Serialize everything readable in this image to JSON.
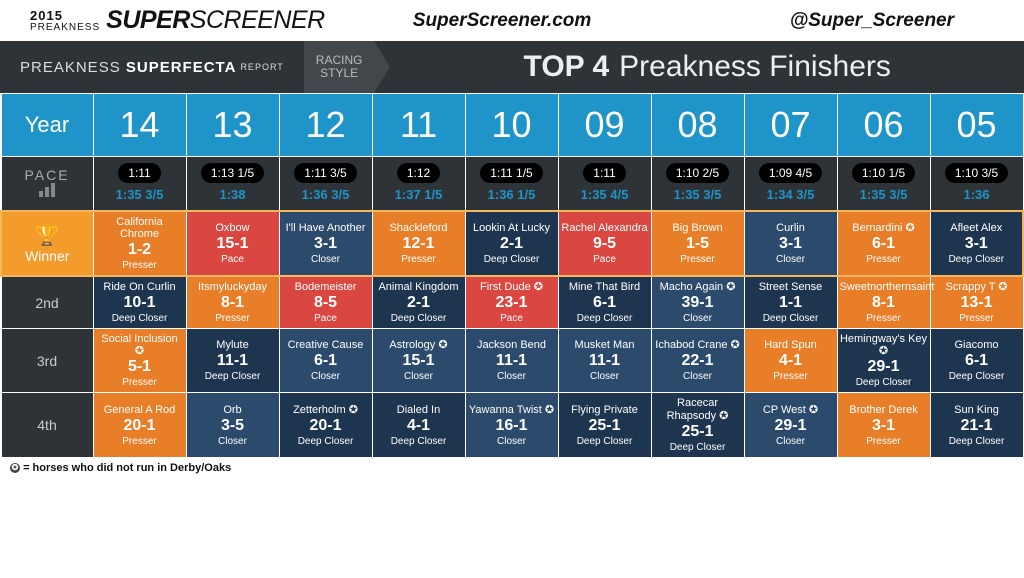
{
  "logo": {
    "year": "2015",
    "pre": "PREAKNESS",
    "brand_a": "SUPER",
    "brand_b": "SCREENER"
  },
  "topbar": {
    "site": "SuperScreener.com",
    "handle": "@Super_Screener"
  },
  "subheader": {
    "left_a": "PREAKNESS",
    "left_b": "SUPERFECTA",
    "left_c": "REPORT",
    "racing_a": "RACING",
    "racing_b": "STYLE",
    "title_a": "TOP 4",
    "title_b": "Preakness Finishers"
  },
  "labels": {
    "year": "Year",
    "pace": "PACE",
    "winner": "Winner",
    "p2": "2nd",
    "p3": "3rd",
    "p4": "4th"
  },
  "footnote": "= horses who did not run in Derby/Oaks",
  "colors": {
    "orange": "#e87e27",
    "red": "#d94740",
    "navy": "#2c4a6b",
    "darknavy": "#1e3550",
    "header_blue": "#1e94c8",
    "dark": "#2e3338",
    "highlight": "#f39c2c"
  },
  "years": [
    "14",
    "13",
    "12",
    "11",
    "10",
    "09",
    "08",
    "07",
    "06",
    "05"
  ],
  "pace": [
    {
      "p1": "1:11",
      "p2": "1:35 3/5"
    },
    {
      "p1": "1:13 1/5",
      "p2": "1:38"
    },
    {
      "p1": "1:11 3/5",
      "p2": "1:36 3/5"
    },
    {
      "p1": "1:12",
      "p2": "1:37 1/5"
    },
    {
      "p1": "1:11 1/5",
      "p2": "1:36 1/5"
    },
    {
      "p1": "1:11",
      "p2": "1:35 4/5"
    },
    {
      "p1": "1:10 2/5",
      "p2": "1:35 3/5"
    },
    {
      "p1": "1:09 4/5",
      "p2": "1:34 3/5"
    },
    {
      "p1": "1:10 1/5",
      "p2": "1:35 3/5"
    },
    {
      "p1": "1:10 3/5",
      "p2": "1:36"
    }
  ],
  "rows": [
    [
      {
        "h": "California Chrome",
        "o": "1-2",
        "s": "Presser",
        "c": "orange"
      },
      {
        "h": "Oxbow",
        "o": "15-1",
        "s": "Pace",
        "c": "red"
      },
      {
        "h": "I'll Have Another",
        "o": "3-1",
        "s": "Closer",
        "c": "navy"
      },
      {
        "h": "Shackleford",
        "o": "12-1",
        "s": "Presser",
        "c": "orange"
      },
      {
        "h": "Lookin At Lucky",
        "o": "2-1",
        "s": "Deep Closer",
        "c": "darknavy"
      },
      {
        "h": "Rachel Alexandra",
        "o": "9-5",
        "s": "Pace",
        "c": "red"
      },
      {
        "h": "Big Brown",
        "o": "1-5",
        "s": "Presser",
        "c": "orange"
      },
      {
        "h": "Curlin",
        "o": "3-1",
        "s": "Closer",
        "c": "navy"
      },
      {
        "h": "Bernardini ✪",
        "o": "6-1",
        "s": "Presser",
        "c": "orange"
      },
      {
        "h": "Afleet Alex",
        "o": "3-1",
        "s": "Deep Closer",
        "c": "darknavy"
      }
    ],
    [
      {
        "h": "Ride On Curlin",
        "o": "10-1",
        "s": "Deep Closer",
        "c": "darknavy"
      },
      {
        "h": "Itsmyluckyday",
        "o": "8-1",
        "s": "Presser",
        "c": "orange"
      },
      {
        "h": "Bodemeister",
        "o": "8-5",
        "s": "Pace",
        "c": "red"
      },
      {
        "h": "Animal Kingdom",
        "o": "2-1",
        "s": "Deep Closer",
        "c": "darknavy"
      },
      {
        "h": "First Dude ✪",
        "o": "23-1",
        "s": "Pace",
        "c": "red"
      },
      {
        "h": "Mine That Bird",
        "o": "6-1",
        "s": "Deep Closer",
        "c": "darknavy"
      },
      {
        "h": "Macho Again ✪",
        "o": "39-1",
        "s": "Closer",
        "c": "navy"
      },
      {
        "h": "Street Sense",
        "o": "1-1",
        "s": "Deep Closer",
        "c": "darknavy"
      },
      {
        "h": "Sweetnorthernsaint",
        "o": "8-1",
        "s": "Presser",
        "c": "orange"
      },
      {
        "h": "Scrappy T ✪",
        "o": "13-1",
        "s": "Presser",
        "c": "orange"
      }
    ],
    [
      {
        "h": "Social Inclusion ✪",
        "o": "5-1",
        "s": "Presser",
        "c": "orange"
      },
      {
        "h": "Mylute",
        "o": "11-1",
        "s": "Deep Closer",
        "c": "darknavy"
      },
      {
        "h": "Creative Cause",
        "o": "6-1",
        "s": "Closer",
        "c": "navy"
      },
      {
        "h": "Astrology ✪",
        "o": "15-1",
        "s": "Closer",
        "c": "navy"
      },
      {
        "h": "Jackson Bend",
        "o": "11-1",
        "s": "Closer",
        "c": "navy"
      },
      {
        "h": "Musket Man",
        "o": "11-1",
        "s": "Closer",
        "c": "navy"
      },
      {
        "h": "Ichabod Crane ✪",
        "o": "22-1",
        "s": "Closer",
        "c": "navy"
      },
      {
        "h": "Hard Spun",
        "o": "4-1",
        "s": "Presser",
        "c": "orange"
      },
      {
        "h": "Hemingway's Key ✪",
        "o": "29-1",
        "s": "Deep Closer",
        "c": "darknavy"
      },
      {
        "h": "Giacomo",
        "o": "6-1",
        "s": "Deep Closer",
        "c": "darknavy"
      }
    ],
    [
      {
        "h": "General A Rod",
        "o": "20-1",
        "s": "Presser",
        "c": "orange"
      },
      {
        "h": "Orb",
        "o": "3-5",
        "s": "Closer",
        "c": "navy"
      },
      {
        "h": "Zetterholm ✪",
        "o": "20-1",
        "s": "Deep Closer",
        "c": "darknavy"
      },
      {
        "h": "Dialed In",
        "o": "4-1",
        "s": "Deep Closer",
        "c": "darknavy"
      },
      {
        "h": "Yawanna Twist ✪",
        "o": "16-1",
        "s": "Closer",
        "c": "navy"
      },
      {
        "h": "Flying Private",
        "o": "25-1",
        "s": "Deep Closer",
        "c": "darknavy"
      },
      {
        "h": "Racecar Rhapsody ✪",
        "o": "25-1",
        "s": "Deep Closer",
        "c": "darknavy"
      },
      {
        "h": "CP West ✪",
        "o": "29-1",
        "s": "Closer",
        "c": "navy"
      },
      {
        "h": "Brother Derek",
        "o": "3-1",
        "s": "Presser",
        "c": "orange"
      },
      {
        "h": "Sun King",
        "o": "21-1",
        "s": "Deep Closer",
        "c": "darknavy"
      }
    ]
  ]
}
